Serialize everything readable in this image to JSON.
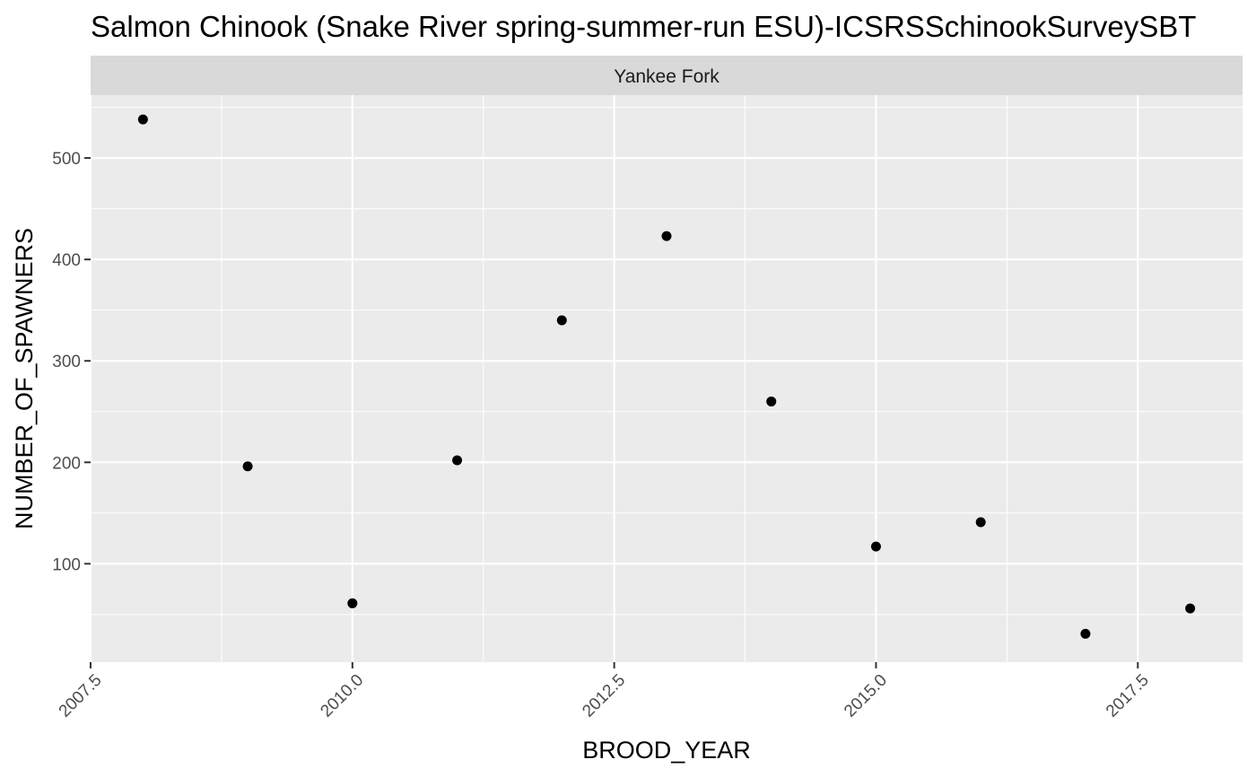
{
  "chart_data": {
    "type": "scatter",
    "title": "Salmon Chinook (Snake River spring-summer-run ESU)-ICSRSSchinookSurveySBT",
    "facet_label": "Yankee Fork",
    "xlabel": "BROOD_YEAR",
    "ylabel": "NUMBER_OF_SPAWNERS",
    "x_ticks": [
      "2007.5",
      "2010.0",
      "2012.5",
      "2015.0",
      "2017.5"
    ],
    "y_ticks": [
      "100",
      "200",
      "300",
      "400",
      "500"
    ],
    "xlim": [
      2007.5,
      2018.5
    ],
    "ylim": [
      3,
      562
    ],
    "grid": true,
    "point_color": "#000000",
    "panel_color": "#ebebeb",
    "strip_color": "#d9d9d9",
    "points": [
      {
        "x": 2008,
        "y": 538
      },
      {
        "x": 2009,
        "y": 196
      },
      {
        "x": 2010,
        "y": 61
      },
      {
        "x": 2011,
        "y": 202
      },
      {
        "x": 2012,
        "y": 340
      },
      {
        "x": 2013,
        "y": 423
      },
      {
        "x": 2014,
        "y": 260
      },
      {
        "x": 2015,
        "y": 117
      },
      {
        "x": 2016,
        "y": 141
      },
      {
        "x": 2017,
        "y": 31
      },
      {
        "x": 2018,
        "y": 56
      }
    ]
  }
}
